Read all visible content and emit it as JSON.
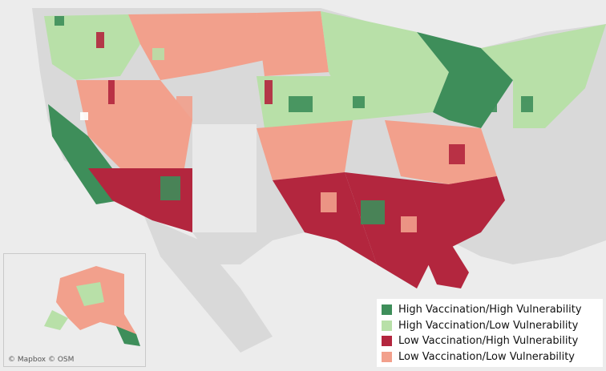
{
  "map": {
    "region": "United States",
    "inset_region": "Alaska",
    "attribution": "© Mapbox © OSM"
  },
  "legend": {
    "items": [
      {
        "label": "High Vaccination/High Vulnerability",
        "color": "#3e8e5a"
      },
      {
        "label": "High Vaccination/Low Vulnerability",
        "color": "#b8e0a8"
      },
      {
        "label": "Low Vaccination/High Vulnerability",
        "color": "#b3263e"
      },
      {
        "label": "Low Vaccination/Low Vulnerability",
        "color": "#f2a08c"
      }
    ]
  },
  "colors": {
    "background": "#ececec",
    "land": "#d8d8d8",
    "no_data": "#e9e9e9"
  }
}
